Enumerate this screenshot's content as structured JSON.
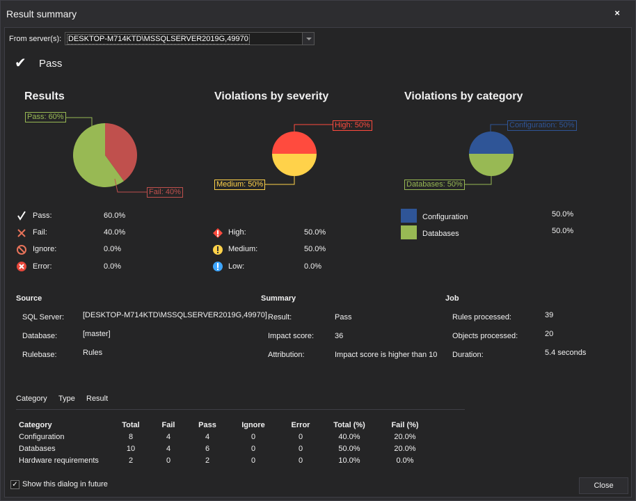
{
  "window": {
    "title": "Result summary",
    "close_glyph": "×"
  },
  "server": {
    "label": "From server(s):",
    "value": "DESKTOP-M714KTD\\MSSQLSERVER2019G,49970"
  },
  "status": {
    "icon": "check-icon",
    "label": "Pass"
  },
  "charts": {
    "results": {
      "title": "Results",
      "pass_callout": "Pass: 60%",
      "fail_callout": "Fail: 40%",
      "legend": [
        {
          "icon": "check-icon",
          "label": "Pass:",
          "value": "60.0%"
        },
        {
          "icon": "x-icon",
          "label": "Fail:",
          "value": "40.0%"
        },
        {
          "icon": "ignore-icon",
          "label": "Ignore:",
          "value": "0.0%"
        },
        {
          "icon": "error-icon",
          "label": "Error:",
          "value": "0.0%"
        }
      ]
    },
    "severity": {
      "title": "Violations by severity",
      "high_callout": "High: 50%",
      "medium_callout": "Medium: 50%",
      "legend": [
        {
          "icon": "high-severity-icon",
          "label": "High:",
          "value": "50.0%"
        },
        {
          "icon": "medium-severity-icon",
          "label": "Medium:",
          "value": "50.0%"
        },
        {
          "icon": "low-severity-icon",
          "label": "Low:",
          "value": "0.0%"
        }
      ]
    },
    "category": {
      "title": "Violations by category",
      "config_callout": "Configuration: 50%",
      "db_callout": "Databases: 50%",
      "legend": [
        {
          "label": "Configuration",
          "value": "50.0%"
        },
        {
          "label": "Databases",
          "value": "50.0%"
        }
      ]
    }
  },
  "chart_data": [
    {
      "type": "pie",
      "title": "Results",
      "categories": [
        "Pass",
        "Fail"
      ],
      "values": [
        60,
        40
      ],
      "colors": [
        "#98b954",
        "#c0504d"
      ]
    },
    {
      "type": "pie",
      "title": "Violations by severity",
      "categories": [
        "High",
        "Medium"
      ],
      "values": [
        50,
        50
      ],
      "colors": [
        "#ff4b3e",
        "#ffd24a"
      ]
    },
    {
      "type": "pie",
      "title": "Violations by category",
      "categories": [
        "Configuration",
        "Databases"
      ],
      "values": [
        50,
        50
      ],
      "colors": [
        "#2f5597",
        "#98b954"
      ]
    }
  ],
  "source": {
    "title": "Source",
    "rows": [
      {
        "label": "SQL Server:",
        "value": "[DESKTOP-M714KTD\\MSSQLSERVER2019G,49970]"
      },
      {
        "label": "Database:",
        "value": "[master]"
      },
      {
        "label": "Rulebase:",
        "value": "Rules"
      }
    ]
  },
  "summary": {
    "title": "Summary",
    "rows": [
      {
        "label": "Result:",
        "value": "Pass"
      },
      {
        "label": "Impact score:",
        "value": "36"
      },
      {
        "label": "Attribution:",
        "value": "Impact score is higher than 10"
      }
    ]
  },
  "job": {
    "title": "Job",
    "rows": [
      {
        "label": "Rules processed:",
        "value": "39"
      },
      {
        "label": "Objects processed:",
        "value": "20"
      },
      {
        "label": "Duration:",
        "value": "5.4 seconds"
      }
    ]
  },
  "tabs": [
    "Category",
    "Type",
    "Result"
  ],
  "table": {
    "headers": [
      "Category",
      "Total",
      "Fail",
      "Pass",
      "Ignore",
      "Error",
      "Total (%)",
      "Fail (%)"
    ],
    "rows": [
      [
        "Configuration",
        "8",
        "4",
        "4",
        "0",
        "0",
        "40.0%",
        "20.0%"
      ],
      [
        "Databases",
        "10",
        "4",
        "6",
        "0",
        "0",
        "50.0%",
        "20.0%"
      ],
      [
        "Hardware requirements",
        "2",
        "0",
        "2",
        "0",
        "0",
        "10.0%",
        "0.0%"
      ]
    ]
  },
  "footer": {
    "checkbox_label": "Show this dialog in future",
    "checkbox_checked": true,
    "close_label": "Close"
  },
  "colors": {
    "pass": "#98b954",
    "fail": "#c0504d",
    "high": "#ff4b3e",
    "medium": "#ffd24a",
    "low": "#3ea6ff",
    "configuration": "#2f5597",
    "databases": "#98b954"
  }
}
